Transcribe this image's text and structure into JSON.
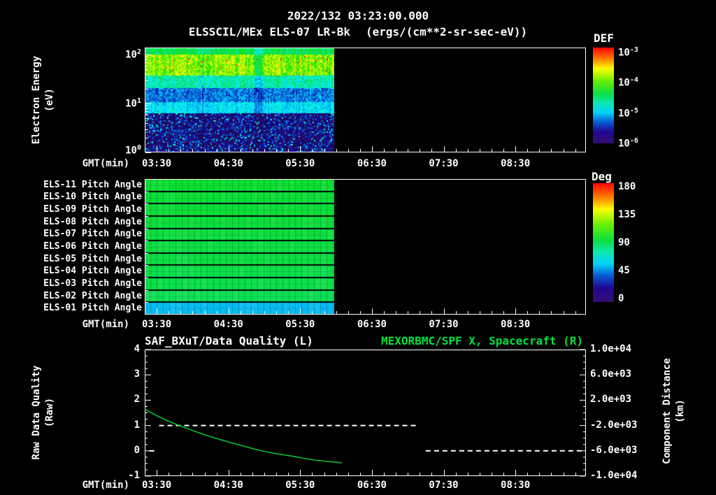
{
  "header": {
    "timestamp": "2022/132 03:23:00.000",
    "instrument": "ELSSCIL/MEx ELS-07 LR-Bk",
    "units": "(ergs/(cm**2-sr-sec-eV))"
  },
  "colors": {
    "background": "#000000",
    "text": "#ffffff",
    "title_green": "#00e33c",
    "curve_green": "#00c030"
  },
  "axes": {
    "x_label": "GMT(min)",
    "x_ticks": [
      "03:30",
      "04:30",
      "05:30",
      "06:30",
      "07:30",
      "08:30"
    ]
  },
  "panel_energy": {
    "ylabel": "Electron Energy",
    "ylabel_units": "(eV)",
    "y_ticks": [
      "10^2",
      "10^1",
      "10^0"
    ],
    "colorbar": {
      "label": "DEF",
      "ticks": [
        "10^-3",
        "10^-4",
        "10^-5",
        "10^-6"
      ]
    }
  },
  "panel_pitch": {
    "colorbar": {
      "label": "Deg",
      "ticks": [
        "180",
        "135",
        "90",
        "45",
        "0"
      ]
    }
  },
  "panel_lines": {
    "left_title": "SAF_BXuT/Data Quality (L)",
    "right_title": "MEXORBMC/SPF X, Spacecraft (R)",
    "left_ylabel": "Raw Data Quality",
    "left_ylabel_units": "(Raw)",
    "right_ylabel": "Component Distance",
    "right_ylabel_units": "(km)",
    "left_ticks": [
      "4",
      "3",
      "2",
      "1",
      "0",
      "-1"
    ],
    "right_ticks": [
      "1.0e+04",
      "6.0e+03",
      "2.0e+03",
      "-2.0e+03",
      "-6.0e+03",
      "-1.0e+04"
    ]
  },
  "chart_data": [
    {
      "type": "heatmap",
      "name": "electron-energy-spectrogram",
      "title": "ELSSCIL/MEx ELS-07 LR-Bk",
      "units": "ergs/(cm**2-sr-sec-eV)",
      "xlabel": "GMT(min)",
      "x_ticks": [
        "03:30",
        "04:30",
        "05:30",
        "06:30",
        "07:30",
        "08:30"
      ],
      "x_range": [
        "03:20",
        "09:29"
      ],
      "ylabel": "Electron Energy (eV)",
      "y_scale": "log",
      "y_range_eV": [
        1,
        140
      ],
      "colorbar": {
        "label": "DEF",
        "scale": "log",
        "range": [
          1e-06,
          0.001
        ],
        "ticks": [
          "10^-3",
          "10^-4",
          "10^-5",
          "10^-6"
        ]
      },
      "coverage": {
        "start": "03:20",
        "end": "05:58"
      },
      "bands": [
        {
          "energy_eV": [
            60,
            140
          ],
          "y0": 0.0,
          "y1": 0.06,
          "v": 0.5,
          "noise": 0.05,
          "desc": "green moderate flux"
        },
        {
          "energy_eV": [
            20,
            60
          ],
          "y0": 0.06,
          "y1": 0.26,
          "v": 0.68,
          "noise": 0.09,
          "desc": "bright yellow-green peak flux band"
        },
        {
          "energy_eV": [
            9,
            20
          ],
          "y0": 0.26,
          "y1": 0.38,
          "v": 0.42,
          "noise": 0.08,
          "desc": "green-cyan transition"
        },
        {
          "energy_eV": [
            5,
            9
          ],
          "y0": 0.38,
          "y1": 0.52,
          "v": 0.25,
          "noise": 0.07,
          "desc": "blue low flux"
        },
        {
          "energy_eV": [
            3.5,
            5
          ],
          "y0": 0.52,
          "y1": 0.62,
          "v": 0.34,
          "noise": 0.05,
          "desc": "cyan secondary band"
        },
        {
          "energy_eV": [
            1,
            3.5
          ],
          "y0": 0.62,
          "y1": 1.0,
          "v": 0.14,
          "noise": 0.12,
          "desc": "dark blue-purple speckle"
        }
      ]
    },
    {
      "type": "heatmap",
      "name": "pitch-angle-panels",
      "xlabel": "GMT(min)",
      "x_ticks": [
        "03:30",
        "04:30",
        "05:30",
        "06:30",
        "07:30",
        "08:30"
      ],
      "coverage": {
        "start": "03:20",
        "end": "05:58"
      },
      "colorbar": {
        "label": "Deg",
        "range": [
          0,
          180
        ],
        "ticks": [
          180,
          135,
          90,
          45,
          0
        ]
      },
      "rows": [
        {
          "label": "ELS-11 Pitch Angle",
          "value_deg": 96
        },
        {
          "label": "ELS-10 Pitch Angle",
          "value_deg": 95
        },
        {
          "label": "ELS-09 Pitch Angle",
          "value_deg": 95
        },
        {
          "label": "ELS-08 Pitch Angle",
          "value_deg": 94
        },
        {
          "label": "ELS-07 Pitch Angle",
          "value_deg": 94
        },
        {
          "label": "ELS-06 Pitch Angle",
          "value_deg": 93
        },
        {
          "label": "ELS-05 Pitch Angle",
          "value_deg": 93
        },
        {
          "label": "ELS-04 Pitch Angle",
          "value_deg": 92
        },
        {
          "label": "ELS-03 Pitch Angle",
          "value_deg": 92
        },
        {
          "label": "ELS-02 Pitch Angle",
          "value_deg": 90
        },
        {
          "label": "ELS-01 Pitch Angle",
          "value_deg": 55
        }
      ]
    },
    {
      "type": "line",
      "name": "data-quality-and-spacecraft-x",
      "xlabel": "GMT(min)",
      "x_ticks": [
        "03:30",
        "04:30",
        "05:30",
        "06:30",
        "07:30",
        "08:30"
      ],
      "left_axis": {
        "label": "Raw Data Quality (Raw)",
        "range": [
          -1,
          4
        ]
      },
      "right_axis": {
        "label": "Component Distance (km)",
        "range": [
          -10000,
          10000
        ]
      },
      "series": [
        {
          "name": "SAF_BXuT/Data Quality (L)",
          "axis": "left",
          "color": "#ffffff",
          "style": "dashed",
          "segments": [
            {
              "start": "03:24",
              "end": "03:28",
              "value": 0
            },
            {
              "start": "03:32",
              "end": "07:09",
              "value": 1
            },
            {
              "start": "07:15",
              "end": "09:29",
              "value": 0
            }
          ]
        },
        {
          "name": "MEXORBMC/SPF X, Spacecraft (R)",
          "axis": "right",
          "color": "#00c030",
          "style": "solid",
          "points": [
            {
              "t": "03:20",
              "km": 600
            },
            {
              "t": "03:33",
              "km": -720
            },
            {
              "t": "03:51",
              "km": -2160
            },
            {
              "t": "04:14",
              "km": -3700
            },
            {
              "t": "04:38",
              "km": -5030
            },
            {
              "t": "05:01",
              "km": -6130
            },
            {
              "t": "05:25",
              "km": -6900
            },
            {
              "t": "05:42",
              "km": -7460
            },
            {
              "t": "06:05",
              "km": -7900
            }
          ]
        }
      ]
    }
  ]
}
